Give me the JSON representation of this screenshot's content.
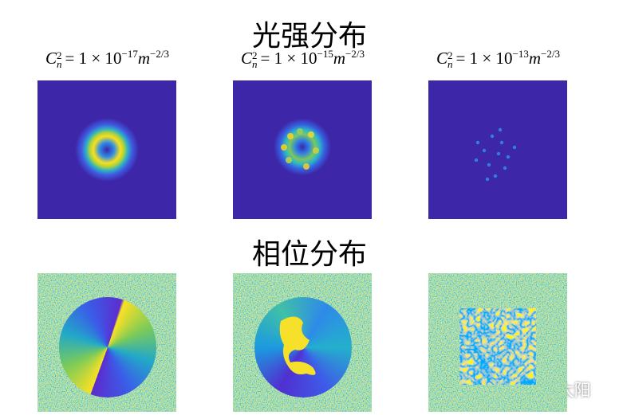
{
  "title_intensity": "光强分布",
  "title_phase": "相位分布",
  "panels": [
    {
      "base": "C",
      "sub": "n",
      "sup": "2",
      "equals": "= 1 × 10",
      "exponent": "−17",
      "unit": "m",
      "unit_exponent": "−2/3"
    },
    {
      "base": "C",
      "sub": "n",
      "sup": "2",
      "equals": "= 1 × 10",
      "exponent": "−15",
      "unit": "m",
      "unit_exponent": "−2/3"
    },
    {
      "base": "C",
      "sub": "n",
      "sup": "2",
      "equals": "= 1 × 10",
      "exponent": "−13",
      "unit": "m",
      "unit_exponent": "−2/3"
    }
  ],
  "watermark": "知乎 @光学小太阳"
}
